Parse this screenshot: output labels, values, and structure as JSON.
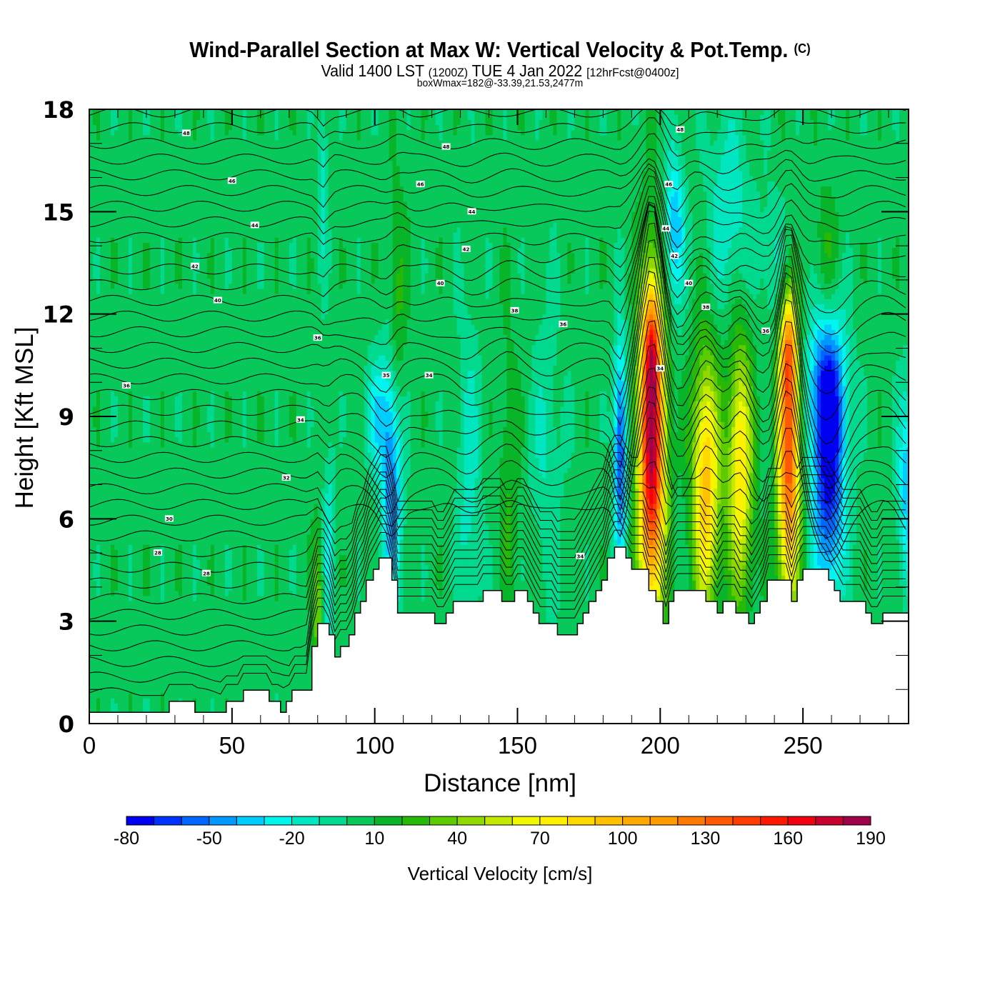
{
  "chart_data": {
    "type": "heatmap",
    "title": "Wind-Parallel Section at Max W: Vertical Velocity & Pot.Temp.",
    "title_mark": "(C)",
    "subtitle": {
      "valid": "Valid 1400 LST",
      "utc": "(1200Z)",
      "date": "TUE 4 Jan 2022",
      "forecast": "[12hrFcst@0400z]"
    },
    "annotation": "boxWmax=182@-33.39,21.53,2477m",
    "xlabel": "Distance [nm]",
    "ylabel": "Height [Kft MSL]",
    "xlim": [
      0,
      287
    ],
    "ylim": [
      0,
      18
    ],
    "xticks": [
      0,
      50,
      100,
      150,
      200,
      250
    ],
    "yticks": [
      0,
      3,
      6,
      9,
      12,
      15,
      18
    ],
    "colorbar": {
      "label": "Vertical Velocity [cm/s]",
      "levels": [
        -80,
        -70,
        -60,
        -50,
        -40,
        -30,
        -20,
        -10,
        0,
        10,
        20,
        30,
        40,
        50,
        60,
        70,
        80,
        90,
        100,
        110,
        120,
        130,
        140,
        150,
        160,
        170,
        180,
        190
      ],
      "tick_labels": [
        "-80",
        "-50",
        "-20",
        "10",
        "40",
        "70",
        "100",
        "130",
        "160",
        "190"
      ],
      "colors": [
        "#0000f0",
        "#0033ff",
        "#0066ff",
        "#0099ff",
        "#00ccff",
        "#00f5ee",
        "#00e6c0",
        "#00d98e",
        "#08c85a",
        "#08b428",
        "#28b808",
        "#5ccc00",
        "#90d800",
        "#c4ea00",
        "#f0f800",
        "#fff000",
        "#ffd800",
        "#ffc000",
        "#ffaa00",
        "#ff9a00",
        "#ff7800",
        "#ff5a00",
        "#ff3c00",
        "#ff1800",
        "#f00010",
        "#c80030",
        "#a00048"
      ]
    },
    "w_field": {
      "background": 5,
      "features": [
        {
          "x": 84,
          "y": 5.0,
          "sx": 1.5,
          "sy": 2.2,
          "w": -25
        },
        {
          "x": 106,
          "y": 7.0,
          "sx": 2.5,
          "sy": 2.4,
          "w": -55
        },
        {
          "x": 101,
          "y": 9.0,
          "sx": 3.0,
          "sy": 1.2,
          "w": -30
        },
        {
          "x": 133,
          "y": 7.0,
          "sx": 3.0,
          "sy": 3.5,
          "w": -20
        },
        {
          "x": 147,
          "y": 7.0,
          "sx": 2.5,
          "sy": 3.0,
          "w": 15
        },
        {
          "x": 160,
          "y": 8.0,
          "sx": 4.0,
          "sy": 3.0,
          "w": -15
        },
        {
          "x": 186,
          "y": 8.0,
          "sx": 1.6,
          "sy": 2.2,
          "w": -70
        },
        {
          "x": 197,
          "y": 8.0,
          "sx": 3.2,
          "sy": 3.2,
          "w": 175
        },
        {
          "x": 197,
          "y": 11.0,
          "sx": 2.0,
          "sy": 1.2,
          "w": 60
        },
        {
          "x": 216,
          "y": 7.0,
          "sx": 3.3,
          "sy": 2.6,
          "w": 90
        },
        {
          "x": 228,
          "y": 7.5,
          "sx": 3.0,
          "sy": 2.6,
          "w": 75
        },
        {
          "x": 245,
          "y": 8.0,
          "sx": 2.7,
          "sy": 3.0,
          "w": 135
        },
        {
          "x": 245,
          "y": 11.0,
          "sx": 1.8,
          "sy": 1.0,
          "w": 55
        },
        {
          "x": 259,
          "y": 7.5,
          "sx": 4.0,
          "sy": 2.6,
          "w": -80
        },
        {
          "x": 258,
          "y": 10.0,
          "sx": 5.0,
          "sy": 1.5,
          "w": -40
        },
        {
          "x": 287,
          "y": 7.0,
          "sx": 2.5,
          "sy": 2.0,
          "w": -45
        },
        {
          "x": 205,
          "y": 14.5,
          "sx": 2.5,
          "sy": 1.6,
          "w": -45
        },
        {
          "x": 224,
          "y": 15.0,
          "sx": 5.0,
          "sy": 2.0,
          "w": -25
        },
        {
          "x": 242,
          "y": 13.5,
          "sx": 5.0,
          "sy": 1.5,
          "w": -20
        },
        {
          "x": 82,
          "y": 16.0,
          "sx": 1.2,
          "sy": 2.0,
          "w": -20
        },
        {
          "x": 108,
          "y": 12.0,
          "sx": 2.0,
          "sy": 2.5,
          "w": 20
        },
        {
          "x": 258,
          "y": 13.5,
          "sx": 3.0,
          "sy": 1.5,
          "w": 18
        },
        {
          "x": 80,
          "y": 3.5,
          "sx": 1.2,
          "sy": 1.5,
          "w": 35
        }
      ]
    },
    "terrain": [
      [
        0,
        0.33
      ],
      [
        28,
        0.33
      ],
      [
        28,
        0.65
      ],
      [
        37,
        0.65
      ],
      [
        37,
        0.33
      ],
      [
        48,
        0.33
      ],
      [
        48,
        0.65
      ],
      [
        54,
        0.65
      ],
      [
        54,
        0.98
      ],
      [
        63,
        0.98
      ],
      [
        63,
        0.65
      ],
      [
        67,
        0.65
      ],
      [
        67,
        0.33
      ],
      [
        69,
        0.33
      ],
      [
        69,
        0.65
      ],
      [
        71,
        0.65
      ],
      [
        71,
        0.98
      ],
      [
        78,
        0.98
      ],
      [
        78,
        2.26
      ],
      [
        80,
        2.26
      ],
      [
        80,
        2.93
      ],
      [
        84,
        2.93
      ],
      [
        84,
        2.6
      ],
      [
        86,
        2.6
      ],
      [
        86,
        1.95
      ],
      [
        88,
        1.95
      ],
      [
        88,
        2.26
      ],
      [
        91,
        2.26
      ],
      [
        91,
        2.6
      ],
      [
        93,
        2.6
      ],
      [
        93,
        3.24
      ],
      [
        95,
        3.24
      ],
      [
        95,
        3.58
      ],
      [
        97,
        3.58
      ],
      [
        97,
        4.2
      ],
      [
        99.5,
        4.2
      ],
      [
        99.5,
        4.52
      ],
      [
        101.5,
        4.52
      ],
      [
        101.5,
        4.85
      ],
      [
        106,
        4.85
      ],
      [
        106,
        4.2
      ],
      [
        108,
        4.2
      ],
      [
        108,
        3.24
      ],
      [
        121,
        3.24
      ],
      [
        121,
        2.93
      ],
      [
        125,
        2.93
      ],
      [
        125,
        3.24
      ],
      [
        127.5,
        3.24
      ],
      [
        127.5,
        3.58
      ],
      [
        138,
        3.58
      ],
      [
        138,
        3.9
      ],
      [
        144.5,
        3.9
      ],
      [
        144.5,
        3.58
      ],
      [
        149,
        3.58
      ],
      [
        149,
        3.9
      ],
      [
        153.5,
        3.9
      ],
      [
        153.5,
        3.58
      ],
      [
        155.5,
        3.58
      ],
      [
        155.5,
        3.24
      ],
      [
        157.5,
        3.24
      ],
      [
        157.5,
        2.93
      ],
      [
        164,
        2.93
      ],
      [
        164,
        2.6
      ],
      [
        171,
        2.6
      ],
      [
        171,
        2.93
      ],
      [
        173,
        2.93
      ],
      [
        173,
        3.24
      ],
      [
        175,
        3.24
      ],
      [
        175,
        3.58
      ],
      [
        177.5,
        3.58
      ],
      [
        177.5,
        3.9
      ],
      [
        179.5,
        3.9
      ],
      [
        179.5,
        4.2
      ],
      [
        181.5,
        4.2
      ],
      [
        181.5,
        4.85
      ],
      [
        184,
        4.85
      ],
      [
        184,
        5.17
      ],
      [
        188,
        5.17
      ],
      [
        188,
        4.85
      ],
      [
        190,
        4.85
      ],
      [
        190,
        4.52
      ],
      [
        196,
        4.52
      ],
      [
        196,
        3.9
      ],
      [
        198.5,
        3.9
      ],
      [
        198.5,
        3.58
      ],
      [
        201,
        3.58
      ],
      [
        201,
        2.93
      ],
      [
        203,
        2.93
      ],
      [
        203,
        3.58
      ],
      [
        204.8,
        3.58
      ],
      [
        204.8,
        3.9
      ],
      [
        216,
        3.9
      ],
      [
        216,
        3.58
      ],
      [
        220,
        3.58
      ],
      [
        220,
        3.24
      ],
      [
        222,
        3.24
      ],
      [
        222,
        3.58
      ],
      [
        226.5,
        3.58
      ],
      [
        226.5,
        3.24
      ],
      [
        231,
        3.24
      ],
      [
        231,
        2.93
      ],
      [
        233,
        2.93
      ],
      [
        233,
        3.24
      ],
      [
        235,
        3.24
      ],
      [
        235,
        3.58
      ],
      [
        237.5,
        3.58
      ],
      [
        237.5,
        4.2
      ],
      [
        246,
        4.2
      ],
      [
        246,
        3.58
      ],
      [
        248,
        3.58
      ],
      [
        248,
        4.2
      ],
      [
        250,
        4.2
      ],
      [
        250,
        4.52
      ],
      [
        259,
        4.52
      ],
      [
        259,
        4.2
      ],
      [
        261,
        4.2
      ],
      [
        261,
        3.9
      ],
      [
        263,
        3.9
      ],
      [
        263,
        3.58
      ],
      [
        272,
        3.58
      ],
      [
        272,
        3.24
      ],
      [
        274,
        3.24
      ],
      [
        274,
        2.93
      ],
      [
        278,
        2.93
      ],
      [
        278,
        3.24
      ],
      [
        287,
        3.24
      ]
    ],
    "theta_contours": {
      "interval_K": 1,
      "labels": [
        {
          "text": "48",
          "x": 34,
          "y": 17.3
        },
        {
          "text": "48",
          "x": 125,
          "y": 16.9
        },
        {
          "text": "48",
          "x": 207,
          "y": 17.4
        },
        {
          "text": "46",
          "x": 50,
          "y": 15.9
        },
        {
          "text": "46",
          "x": 116,
          "y": 15.8
        },
        {
          "text": "46",
          "x": 203,
          "y": 15.8
        },
        {
          "text": "44",
          "x": 58,
          "y": 14.6
        },
        {
          "text": "44",
          "x": 134,
          "y": 15.0
        },
        {
          "text": "44",
          "x": 202,
          "y": 14.5
        },
        {
          "text": "42",
          "x": 37,
          "y": 13.4
        },
        {
          "text": "42",
          "x": 132,
          "y": 13.9
        },
        {
          "text": "42",
          "x": 205,
          "y": 13.7
        },
        {
          "text": "40",
          "x": 45,
          "y": 12.4
        },
        {
          "text": "40",
          "x": 123,
          "y": 12.9
        },
        {
          "text": "40",
          "x": 210,
          "y": 12.9
        },
        {
          "text": "38",
          "x": 149,
          "y": 12.1
        },
        {
          "text": "38",
          "x": 216,
          "y": 12.2
        },
        {
          "text": "36",
          "x": 13,
          "y": 9.9
        },
        {
          "text": "36",
          "x": 80,
          "y": 11.3
        },
        {
          "text": "36",
          "x": 166,
          "y": 11.7
        },
        {
          "text": "36",
          "x": 237,
          "y": 11.5
        },
        {
          "text": "35",
          "x": 104,
          "y": 10.2
        },
        {
          "text": "34",
          "x": 74,
          "y": 8.9
        },
        {
          "text": "34",
          "x": 119,
          "y": 10.2
        },
        {
          "text": "34",
          "x": 200,
          "y": 10.4
        },
        {
          "text": "34",
          "x": 172,
          "y": 4.9
        },
        {
          "text": "32",
          "x": 69,
          "y": 7.2
        },
        {
          "text": "30",
          "x": 28,
          "y": 6.0
        },
        {
          "text": "28",
          "x": 24,
          "y": 5.0
        },
        {
          "text": "28",
          "x": 41,
          "y": 4.4
        }
      ]
    }
  }
}
